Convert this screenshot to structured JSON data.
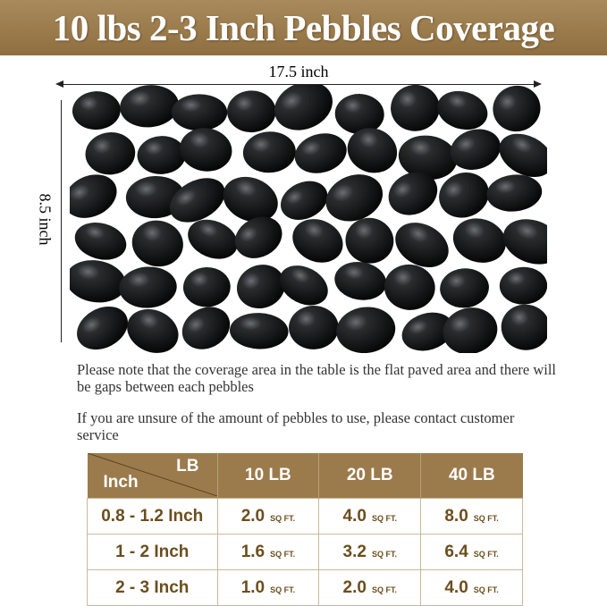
{
  "title": "10 lbs 2-3 Inch Pebbles Coverage",
  "dimensions": {
    "width": "17.5 inch",
    "height": "8.5 inch"
  },
  "notes": [
    "Please note that the coverage area in the table is the flat paved area and there will be gaps between each pebbles",
    "If you are unsure of the amount of pebbles to use, please contact customer service"
  ],
  "table": {
    "corner_col": "LB",
    "corner_row": "Inch",
    "headers": [
      "10 LB",
      "20 LB",
      "40 LB"
    ],
    "unit": "SQ FT.",
    "rows": [
      {
        "size": "0.8 - 1.2 Inch",
        "values": [
          "2.0",
          "4.0",
          "8.0"
        ]
      },
      {
        "size": "1 - 2 Inch",
        "values": [
          "1.6",
          "3.2",
          "6.4"
        ]
      },
      {
        "size": "2 - 3 Inch",
        "values": [
          "1.0",
          "2.0",
          "4.0"
        ]
      }
    ]
  },
  "colors": {
    "banner": "#9b7b4c",
    "table_text": "#6b4e1e"
  }
}
